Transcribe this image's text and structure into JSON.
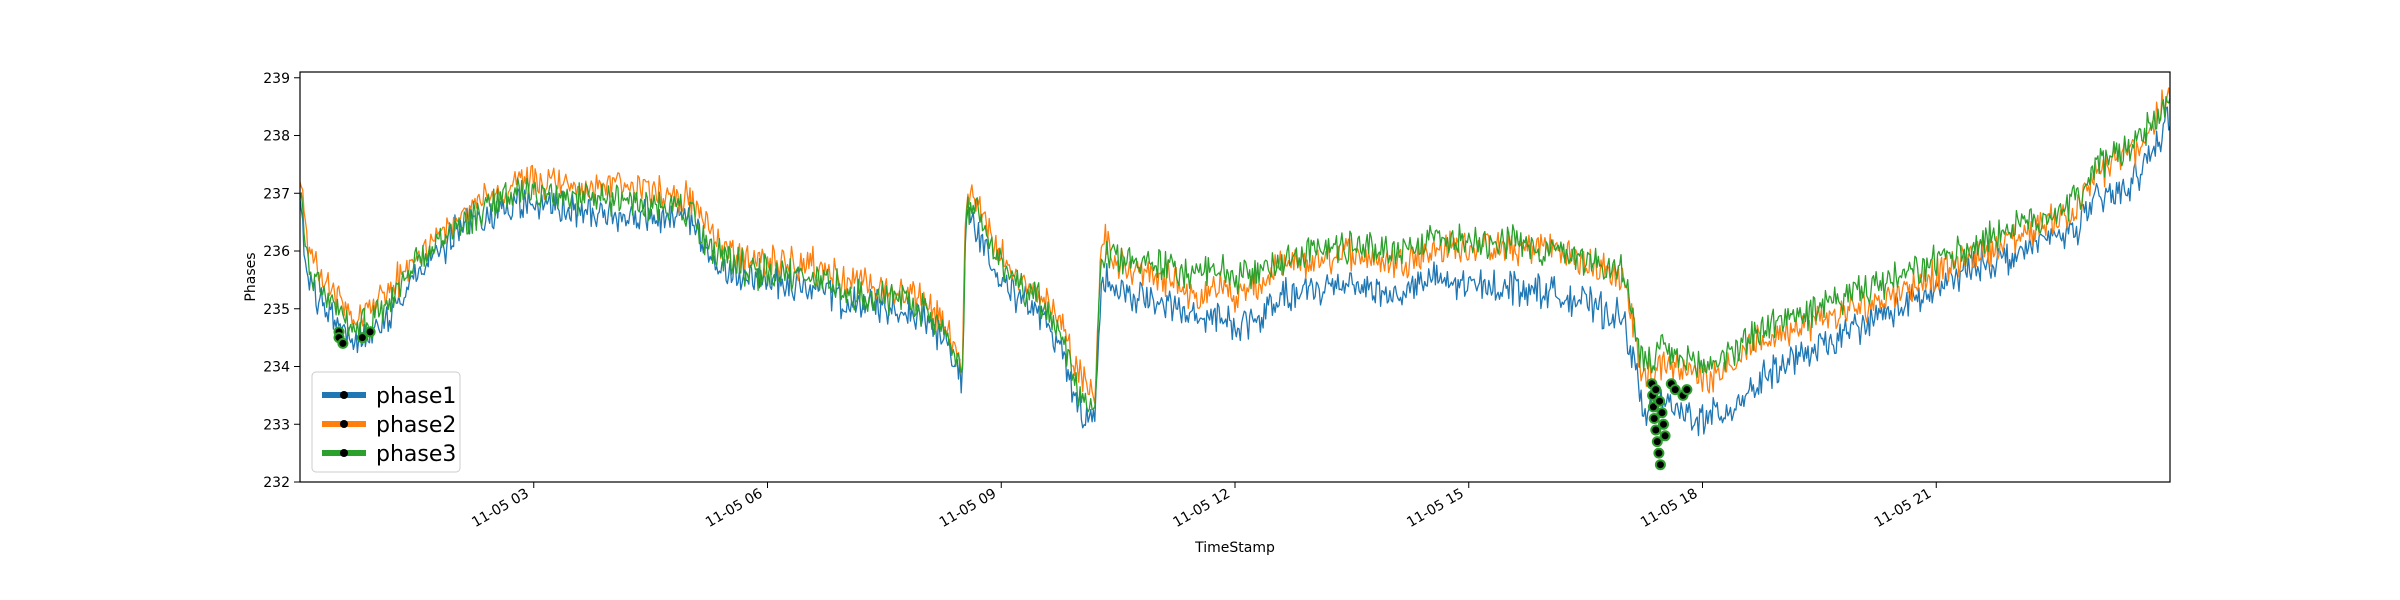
{
  "chart_data": {
    "type": "line",
    "xlabel": "TimeStamp",
    "ylabel": "Phases",
    "xlim": [
      "2020-11-05 00:00",
      "2020-11-05 24:00"
    ],
    "ylim": [
      232,
      239.1
    ],
    "x_ticks": [
      {
        "hour": 3,
        "label": "11-05 03"
      },
      {
        "hour": 6,
        "label": "11-05 06"
      },
      {
        "hour": 9,
        "label": "11-05 09"
      },
      {
        "hour": 12,
        "label": "11-05 12"
      },
      {
        "hour": 15,
        "label": "11-05 15"
      },
      {
        "hour": 18,
        "label": "11-05 18"
      },
      {
        "hour": 21,
        "label": "11-05 21"
      }
    ],
    "y_ticks": [
      232,
      233,
      234,
      235,
      236,
      237,
      238,
      239
    ],
    "grid": false,
    "legend": "bottom-left",
    "series": [
      {
        "name": "phase1",
        "color": "#1f77b4",
        "hours": [
          0,
          0.1,
          0.3,
          0.5,
          0.7,
          0.9,
          1.2,
          1.5,
          1.8,
          2.0,
          2.3,
          2.6,
          2.8,
          3.0,
          3.5,
          4.0,
          4.5,
          5.0,
          5.3,
          5.5,
          6.0,
          6.5,
          7.0,
          7.5,
          8.0,
          8.3,
          8.5,
          8.55,
          8.7,
          8.9,
          9.2,
          9.5,
          9.8,
          10.0,
          10.2,
          10.28,
          10.35,
          10.5,
          10.8,
          11.2,
          11.5,
          11.8,
          12.0,
          12.3,
          12.6,
          13.0,
          13.5,
          14.0,
          14.5,
          15.0,
          15.5,
          16.0,
          16.5,
          17.0,
          17.2,
          17.3,
          17.5,
          17.7,
          18.0,
          18.3,
          18.6,
          19.0,
          19.5,
          20.0,
          20.5,
          21.0,
          21.3,
          21.6,
          22.0,
          22.4,
          22.8,
          23.0,
          23.3,
          23.6,
          24.0
        ],
        "values": [
          236.8,
          235.5,
          235.0,
          234.8,
          234.4,
          234.6,
          235.0,
          235.6,
          236.0,
          236.3,
          236.6,
          236.7,
          236.8,
          236.8,
          236.7,
          236.6,
          236.6,
          236.5,
          235.8,
          235.6,
          235.5,
          235.4,
          235.1,
          235.0,
          234.9,
          234.4,
          233.8,
          236.6,
          236.4,
          235.8,
          235.2,
          234.9,
          234.2,
          233.3,
          233.0,
          235.4,
          235.6,
          235.3,
          235.2,
          235.0,
          234.8,
          234.9,
          234.7,
          234.8,
          235.2,
          235.3,
          235.5,
          235.2,
          235.5,
          235.4,
          235.4,
          235.3,
          235.1,
          234.8,
          233.5,
          233.2,
          233.4,
          233.2,
          233.1,
          233.2,
          233.6,
          234.0,
          234.3,
          234.7,
          235.0,
          235.3,
          235.6,
          235.8,
          235.9,
          236.2,
          236.4,
          236.8,
          237.0,
          237.3,
          238.3
        ]
      },
      {
        "name": "phase2",
        "color": "#ff7f0e",
        "hours": [
          0,
          0.1,
          0.3,
          0.5,
          0.7,
          0.9,
          1.2,
          1.5,
          1.8,
          2.0,
          2.3,
          2.6,
          2.8,
          3.0,
          3.5,
          4.0,
          4.5,
          5.0,
          5.3,
          5.5,
          6.0,
          6.5,
          7.0,
          7.5,
          8.0,
          8.3,
          8.5,
          8.55,
          8.7,
          8.9,
          9.2,
          9.5,
          9.8,
          10.0,
          10.2,
          10.28,
          10.35,
          10.5,
          10.8,
          11.2,
          11.5,
          11.8,
          12.0,
          12.3,
          12.6,
          13.0,
          13.5,
          14.0,
          14.5,
          15.0,
          15.5,
          16.0,
          16.5,
          17.0,
          17.2,
          17.3,
          17.5,
          17.7,
          18.0,
          18.3,
          18.6,
          19.0,
          19.5,
          20.0,
          20.5,
          21.0,
          21.3,
          21.6,
          22.0,
          22.4,
          22.8,
          23.0,
          23.3,
          23.6,
          24.0
        ],
        "values": [
          237.3,
          236.0,
          235.5,
          235.2,
          234.8,
          235.0,
          235.4,
          235.9,
          236.3,
          236.5,
          236.9,
          237.0,
          237.2,
          237.2,
          237.1,
          237.1,
          237.1,
          236.9,
          236.3,
          236.0,
          235.8,
          235.8,
          235.5,
          235.3,
          235.2,
          234.6,
          234.0,
          237.0,
          236.9,
          236.2,
          235.5,
          235.3,
          234.7,
          233.9,
          233.5,
          236.1,
          236.2,
          235.8,
          235.6,
          235.5,
          235.2,
          235.4,
          235.2,
          235.4,
          235.7,
          235.8,
          236.0,
          235.8,
          236.0,
          236.1,
          236.0,
          236.1,
          235.8,
          235.5,
          234.0,
          233.8,
          234.1,
          234.0,
          233.8,
          234.0,
          234.3,
          234.6,
          234.8,
          235.0,
          235.3,
          235.6,
          235.8,
          236.0,
          236.2,
          236.5,
          236.7,
          237.2,
          237.6,
          237.8,
          238.7
        ]
      },
      {
        "name": "phase3",
        "color": "#2ca02c",
        "hours": [
          0,
          0.1,
          0.3,
          0.5,
          0.7,
          0.9,
          1.2,
          1.5,
          1.8,
          2.0,
          2.3,
          2.6,
          2.8,
          3.0,
          3.5,
          4.0,
          4.5,
          5.0,
          5.3,
          5.5,
          6.0,
          6.5,
          7.0,
          7.5,
          8.0,
          8.3,
          8.5,
          8.55,
          8.7,
          8.9,
          9.2,
          9.5,
          9.8,
          10.0,
          10.2,
          10.28,
          10.35,
          10.5,
          10.8,
          11.2,
          11.5,
          11.8,
          12.0,
          12.3,
          12.6,
          13.0,
          13.5,
          14.0,
          14.5,
          15.0,
          15.5,
          16.0,
          16.5,
          17.0,
          17.2,
          17.3,
          17.5,
          17.7,
          18.0,
          18.3,
          18.6,
          19.0,
          19.5,
          20.0,
          20.5,
          21.0,
          21.3,
          21.6,
          22.0,
          22.4,
          22.8,
          23.0,
          23.3,
          23.6,
          24.0
        ],
        "values": [
          237.0,
          235.8,
          235.3,
          235.0,
          234.6,
          234.8,
          235.2,
          235.8,
          236.1,
          236.4,
          236.7,
          236.9,
          237.0,
          237.0,
          236.9,
          236.9,
          236.8,
          236.7,
          236.0,
          235.8,
          235.6,
          235.6,
          235.3,
          235.2,
          235.0,
          234.5,
          233.9,
          236.8,
          236.7,
          236.0,
          235.4,
          235.1,
          234.5,
          233.6,
          233.3,
          235.9,
          236.0,
          235.9,
          235.8,
          235.7,
          235.6,
          235.7,
          235.5,
          235.6,
          235.9,
          236.0,
          236.1,
          236.0,
          236.2,
          236.2,
          236.2,
          236.0,
          235.9,
          235.6,
          234.2,
          234.0,
          234.3,
          234.1,
          234.0,
          234.2,
          234.5,
          234.8,
          235.0,
          235.3,
          235.5,
          235.8,
          236.0,
          236.2,
          236.4,
          236.6,
          236.9,
          237.4,
          237.7,
          237.9,
          238.6
        ]
      }
    ],
    "anomaly_points": [
      {
        "hour": 0.5,
        "value": 234.6
      },
      {
        "hour": 0.5,
        "value": 234.5
      },
      {
        "hour": 0.55,
        "value": 234.4
      },
      {
        "hour": 0.8,
        "value": 234.5
      },
      {
        "hour": 0.9,
        "value": 234.6
      },
      {
        "hour": 17.35,
        "value": 233.7
      },
      {
        "hour": 17.36,
        "value": 233.5
      },
      {
        "hour": 17.37,
        "value": 233.3
      },
      {
        "hour": 17.38,
        "value": 233.1
      },
      {
        "hour": 17.4,
        "value": 232.9
      },
      {
        "hour": 17.42,
        "value": 232.7
      },
      {
        "hour": 17.44,
        "value": 232.5
      },
      {
        "hour": 17.46,
        "value": 232.3
      },
      {
        "hour": 17.4,
        "value": 233.6
      },
      {
        "hour": 17.45,
        "value": 233.4
      },
      {
        "hour": 17.48,
        "value": 233.2
      },
      {
        "hour": 17.5,
        "value": 233.0
      },
      {
        "hour": 17.52,
        "value": 232.8
      },
      {
        "hour": 17.6,
        "value": 233.7
      },
      {
        "hour": 17.65,
        "value": 233.6
      },
      {
        "hour": 17.75,
        "value": 233.5
      },
      {
        "hour": 17.8,
        "value": 233.6
      }
    ]
  }
}
